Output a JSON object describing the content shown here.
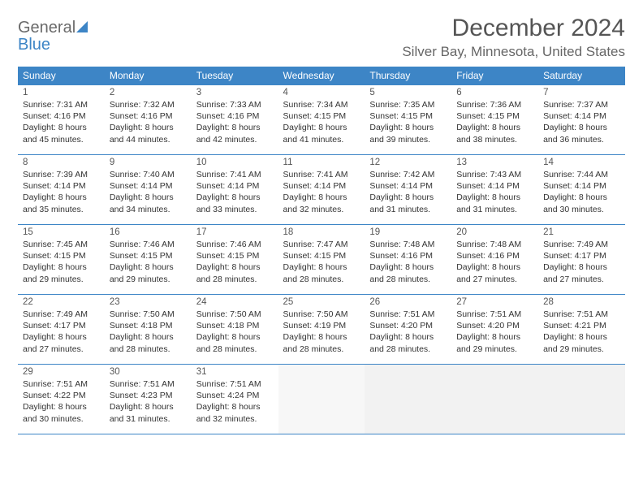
{
  "logo": {
    "general": "General",
    "blue": "Blue"
  },
  "header": {
    "month_title": "December 2024",
    "location": "Silver Bay, Minnesota, United States"
  },
  "style": {
    "header_bg": "#3d85c6",
    "header_text": "#ffffff",
    "border_color": "#3d85c6",
    "page_bg": "#ffffff",
    "title_color": "#555555",
    "location_color": "#666666",
    "logo_general_color": "#6a6a6a",
    "logo_blue_color": "#3d85c6",
    "empty_bg": "#f2f2f2",
    "body_font_size": 10.5,
    "title_font_size": 30,
    "location_font_size": 17
  },
  "weekdays": [
    "Sunday",
    "Monday",
    "Tuesday",
    "Wednesday",
    "Thursday",
    "Friday",
    "Saturday"
  ],
  "weeks": [
    [
      {
        "day": "1",
        "sunrise": "Sunrise: 7:31 AM",
        "sunset": "Sunset: 4:16 PM",
        "daylight1": "Daylight: 8 hours",
        "daylight2": "and 45 minutes."
      },
      {
        "day": "2",
        "sunrise": "Sunrise: 7:32 AM",
        "sunset": "Sunset: 4:16 PM",
        "daylight1": "Daylight: 8 hours",
        "daylight2": "and 44 minutes."
      },
      {
        "day": "3",
        "sunrise": "Sunrise: 7:33 AM",
        "sunset": "Sunset: 4:16 PM",
        "daylight1": "Daylight: 8 hours",
        "daylight2": "and 42 minutes."
      },
      {
        "day": "4",
        "sunrise": "Sunrise: 7:34 AM",
        "sunset": "Sunset: 4:15 PM",
        "daylight1": "Daylight: 8 hours",
        "daylight2": "and 41 minutes."
      },
      {
        "day": "5",
        "sunrise": "Sunrise: 7:35 AM",
        "sunset": "Sunset: 4:15 PM",
        "daylight1": "Daylight: 8 hours",
        "daylight2": "and 39 minutes."
      },
      {
        "day": "6",
        "sunrise": "Sunrise: 7:36 AM",
        "sunset": "Sunset: 4:15 PM",
        "daylight1": "Daylight: 8 hours",
        "daylight2": "and 38 minutes."
      },
      {
        "day": "7",
        "sunrise": "Sunrise: 7:37 AM",
        "sunset": "Sunset: 4:14 PM",
        "daylight1": "Daylight: 8 hours",
        "daylight2": "and 36 minutes."
      }
    ],
    [
      {
        "day": "8",
        "sunrise": "Sunrise: 7:39 AM",
        "sunset": "Sunset: 4:14 PM",
        "daylight1": "Daylight: 8 hours",
        "daylight2": "and 35 minutes."
      },
      {
        "day": "9",
        "sunrise": "Sunrise: 7:40 AM",
        "sunset": "Sunset: 4:14 PM",
        "daylight1": "Daylight: 8 hours",
        "daylight2": "and 34 minutes."
      },
      {
        "day": "10",
        "sunrise": "Sunrise: 7:41 AM",
        "sunset": "Sunset: 4:14 PM",
        "daylight1": "Daylight: 8 hours",
        "daylight2": "and 33 minutes."
      },
      {
        "day": "11",
        "sunrise": "Sunrise: 7:41 AM",
        "sunset": "Sunset: 4:14 PM",
        "daylight1": "Daylight: 8 hours",
        "daylight2": "and 32 minutes."
      },
      {
        "day": "12",
        "sunrise": "Sunrise: 7:42 AM",
        "sunset": "Sunset: 4:14 PM",
        "daylight1": "Daylight: 8 hours",
        "daylight2": "and 31 minutes."
      },
      {
        "day": "13",
        "sunrise": "Sunrise: 7:43 AM",
        "sunset": "Sunset: 4:14 PM",
        "daylight1": "Daylight: 8 hours",
        "daylight2": "and 31 minutes."
      },
      {
        "day": "14",
        "sunrise": "Sunrise: 7:44 AM",
        "sunset": "Sunset: 4:14 PM",
        "daylight1": "Daylight: 8 hours",
        "daylight2": "and 30 minutes."
      }
    ],
    [
      {
        "day": "15",
        "sunrise": "Sunrise: 7:45 AM",
        "sunset": "Sunset: 4:15 PM",
        "daylight1": "Daylight: 8 hours",
        "daylight2": "and 29 minutes."
      },
      {
        "day": "16",
        "sunrise": "Sunrise: 7:46 AM",
        "sunset": "Sunset: 4:15 PM",
        "daylight1": "Daylight: 8 hours",
        "daylight2": "and 29 minutes."
      },
      {
        "day": "17",
        "sunrise": "Sunrise: 7:46 AM",
        "sunset": "Sunset: 4:15 PM",
        "daylight1": "Daylight: 8 hours",
        "daylight2": "and 28 minutes."
      },
      {
        "day": "18",
        "sunrise": "Sunrise: 7:47 AM",
        "sunset": "Sunset: 4:15 PM",
        "daylight1": "Daylight: 8 hours",
        "daylight2": "and 28 minutes."
      },
      {
        "day": "19",
        "sunrise": "Sunrise: 7:48 AM",
        "sunset": "Sunset: 4:16 PM",
        "daylight1": "Daylight: 8 hours",
        "daylight2": "and 28 minutes."
      },
      {
        "day": "20",
        "sunrise": "Sunrise: 7:48 AM",
        "sunset": "Sunset: 4:16 PM",
        "daylight1": "Daylight: 8 hours",
        "daylight2": "and 27 minutes."
      },
      {
        "day": "21",
        "sunrise": "Sunrise: 7:49 AM",
        "sunset": "Sunset: 4:17 PM",
        "daylight1": "Daylight: 8 hours",
        "daylight2": "and 27 minutes."
      }
    ],
    [
      {
        "day": "22",
        "sunrise": "Sunrise: 7:49 AM",
        "sunset": "Sunset: 4:17 PM",
        "daylight1": "Daylight: 8 hours",
        "daylight2": "and 27 minutes."
      },
      {
        "day": "23",
        "sunrise": "Sunrise: 7:50 AM",
        "sunset": "Sunset: 4:18 PM",
        "daylight1": "Daylight: 8 hours",
        "daylight2": "and 28 minutes."
      },
      {
        "day": "24",
        "sunrise": "Sunrise: 7:50 AM",
        "sunset": "Sunset: 4:18 PM",
        "daylight1": "Daylight: 8 hours",
        "daylight2": "and 28 minutes."
      },
      {
        "day": "25",
        "sunrise": "Sunrise: 7:50 AM",
        "sunset": "Sunset: 4:19 PM",
        "daylight1": "Daylight: 8 hours",
        "daylight2": "and 28 minutes."
      },
      {
        "day": "26",
        "sunrise": "Sunrise: 7:51 AM",
        "sunset": "Sunset: 4:20 PM",
        "daylight1": "Daylight: 8 hours",
        "daylight2": "and 28 minutes."
      },
      {
        "day": "27",
        "sunrise": "Sunrise: 7:51 AM",
        "sunset": "Sunset: 4:20 PM",
        "daylight1": "Daylight: 8 hours",
        "daylight2": "and 29 minutes."
      },
      {
        "day": "28",
        "sunrise": "Sunrise: 7:51 AM",
        "sunset": "Sunset: 4:21 PM",
        "daylight1": "Daylight: 8 hours",
        "daylight2": "and 29 minutes."
      }
    ],
    [
      {
        "day": "29",
        "sunrise": "Sunrise: 7:51 AM",
        "sunset": "Sunset: 4:22 PM",
        "daylight1": "Daylight: 8 hours",
        "daylight2": "and 30 minutes."
      },
      {
        "day": "30",
        "sunrise": "Sunrise: 7:51 AM",
        "sunset": "Sunset: 4:23 PM",
        "daylight1": "Daylight: 8 hours",
        "daylight2": "and 31 minutes."
      },
      {
        "day": "31",
        "sunrise": "Sunrise: 7:51 AM",
        "sunset": "Sunset: 4:24 PM",
        "daylight1": "Daylight: 8 hours",
        "daylight2": "and 32 minutes."
      },
      {
        "empty": true
      },
      {
        "empty": true
      },
      {
        "empty": true
      },
      {
        "empty": true
      }
    ]
  ]
}
